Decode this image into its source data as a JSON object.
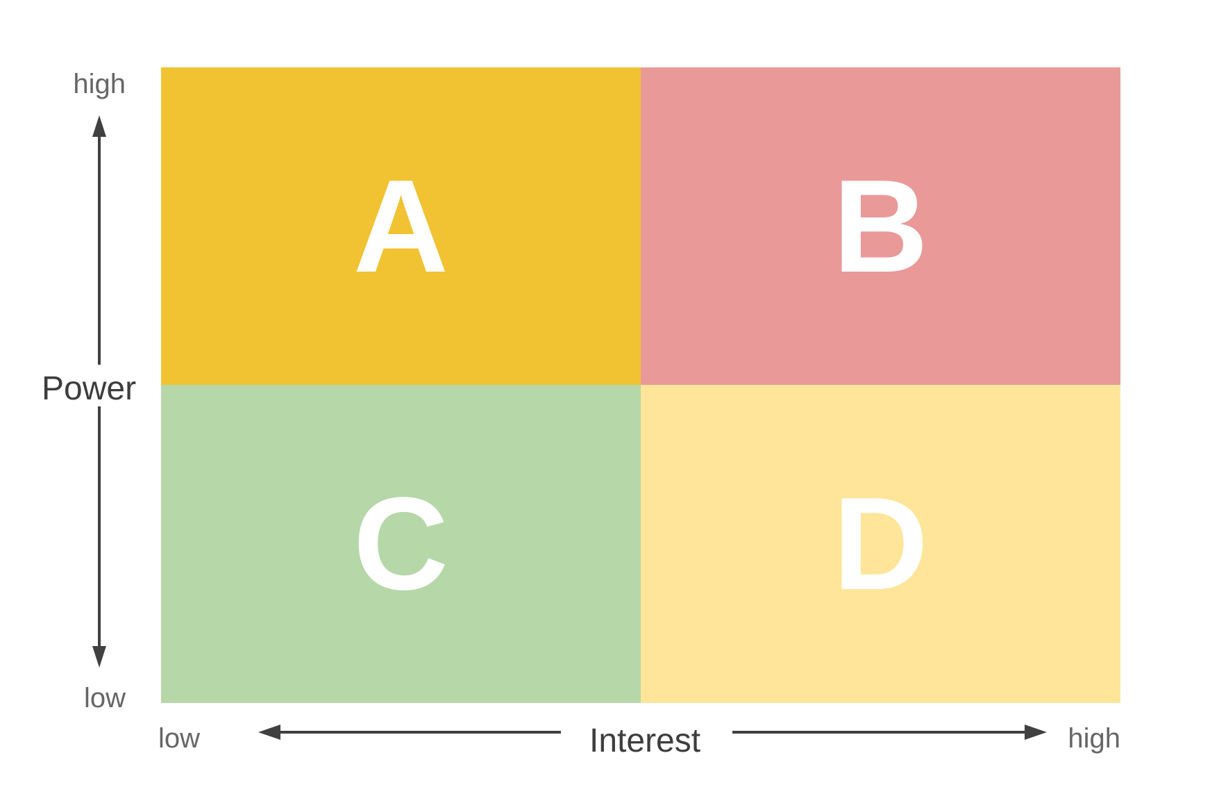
{
  "quadrants": {
    "a": {
      "label": "A",
      "color": "#f1c232"
    },
    "b": {
      "label": "B",
      "color": "#ea9999"
    },
    "c": {
      "label": "C",
      "color": "#b6d7a8"
    },
    "d": {
      "label": "D",
      "color": "#ffe599"
    }
  },
  "y_axis": {
    "title": "Power",
    "high_label": "high",
    "low_label": "low"
  },
  "x_axis": {
    "title": "Interest",
    "low_label": "low",
    "high_label": "high"
  },
  "colors": {
    "axis": "#404040",
    "tick_text": "#666666"
  }
}
